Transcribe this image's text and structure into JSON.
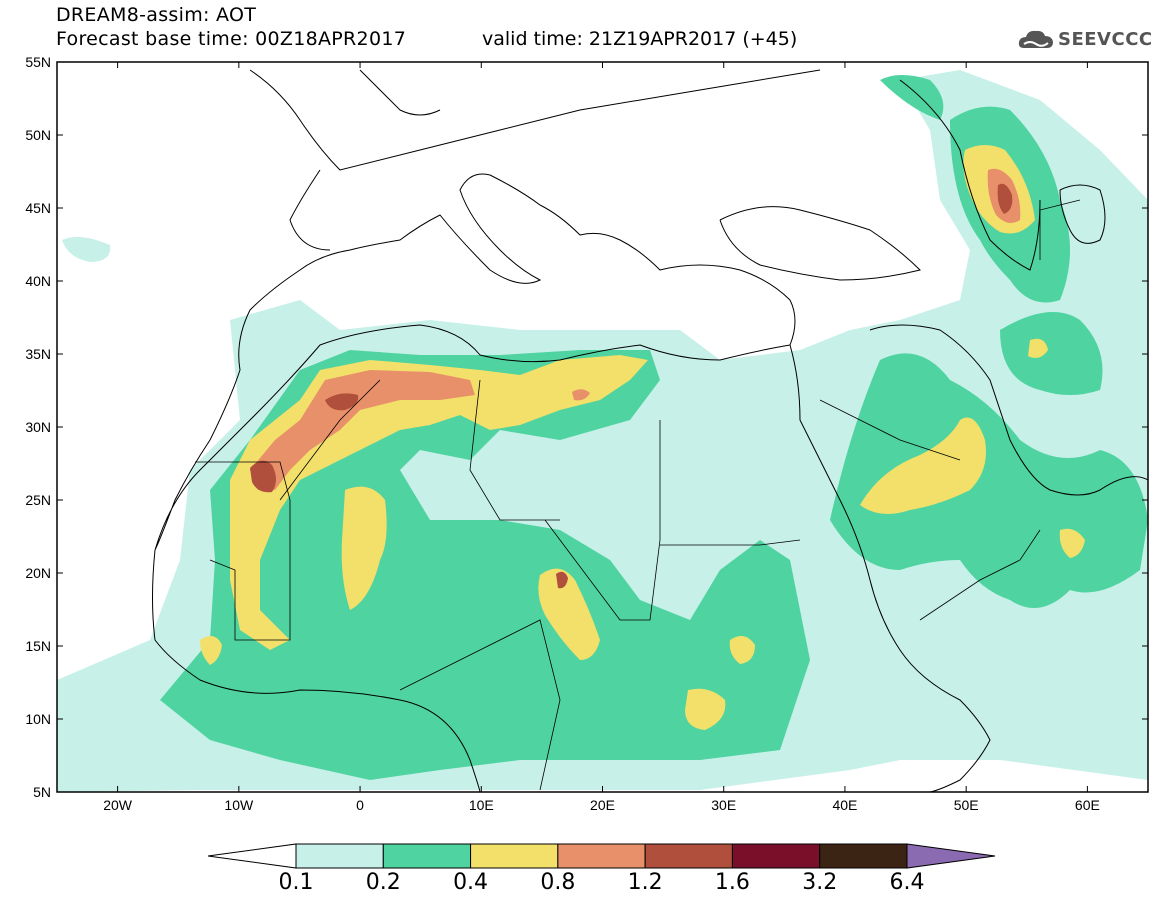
{
  "header": {
    "title_line1": "DREAM8-assim: AOT",
    "title_line2": "Forecast base time: 00Z18APR2017",
    "valid_time": "valid time: 21Z19APR2017 (+45)",
    "logo_text": "SEEVCCC"
  },
  "map": {
    "lat_range": [
      5,
      55
    ],
    "lon_range": [
      -25,
      65
    ],
    "lat_labels": [
      "55N",
      "50N",
      "45N",
      "40N",
      "35N",
      "30N",
      "25N",
      "20N",
      "15N",
      "10N",
      "5N"
    ],
    "lon_labels": [
      "20W",
      "10W",
      "0",
      "10E",
      "20E",
      "30E",
      "40E",
      "50E",
      "60E"
    ]
  },
  "colorbar": {
    "labels": [
      "0.1",
      "0.2",
      "0.4",
      "0.8",
      "1.2",
      "1.6",
      "3.2",
      "6.4"
    ],
    "colors": [
      "#ffffff",
      "#c6f0e8",
      "#4fd3a0",
      "#f2e06a",
      "#e8906a",
      "#b0503c",
      "#7a0f2a",
      "#3c2414",
      "#8a6ab0"
    ]
  }
}
